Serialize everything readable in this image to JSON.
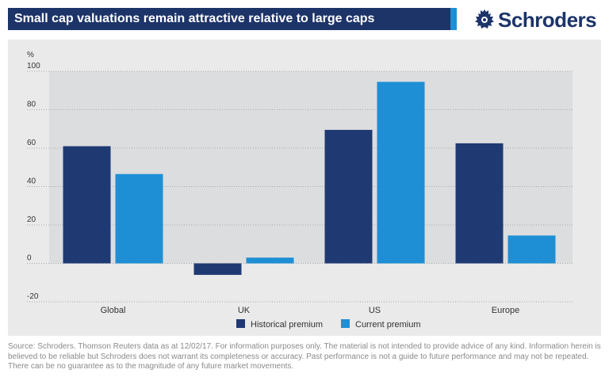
{
  "header": {
    "title": "Small cap valuations remain attractive relative to large caps",
    "brand": "Schroders"
  },
  "colors": {
    "header_bg": "#1d3469",
    "header_accent": "#1e8fd5",
    "historical": "#1f3a73",
    "current": "#1e8fd5"
  },
  "chart_data": {
    "type": "bar",
    "ylabel": "%",
    "ylim": [
      -20,
      100
    ],
    "yticks": [
      -20,
      0,
      20,
      40,
      60,
      80,
      100
    ],
    "grid": true,
    "legend_position": "bottom-center",
    "categories": [
      "Global",
      "UK",
      "US",
      "Europe"
    ],
    "series": [
      {
        "name": "Historical premium",
        "values": [
          61,
          -6,
          69.5,
          62.5
        ]
      },
      {
        "name": "Current premium",
        "values": [
          46.5,
          3,
          94.5,
          14.5
        ]
      }
    ]
  },
  "footnote": "Source: Schroders. Thomson Reuters data as at 12/02/17. For information purposes only. The material is not intended to provide advice of any kind. Information herein is believed to be reliable but Schroders does not warrant its completeness or accuracy. Past performance is not a guide to future performance and may not be repeated. There can be no guarantee as to the magnitude of any future market movements."
}
